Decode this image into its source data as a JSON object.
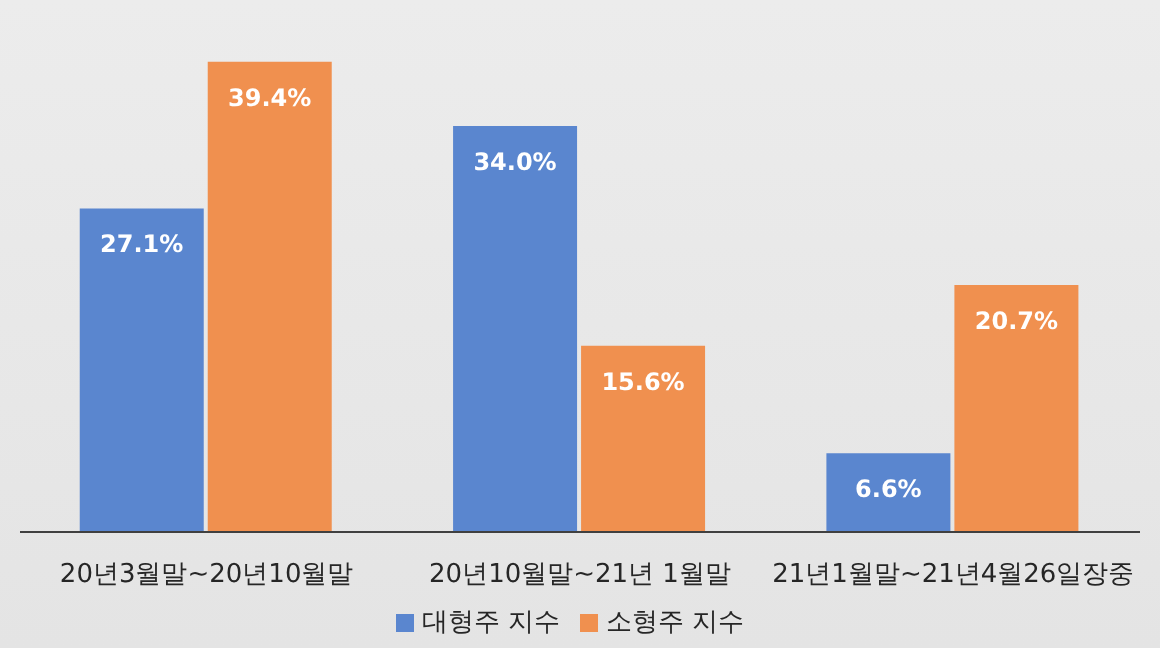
{
  "chart_data": {
    "type": "bar",
    "categories": [
      "20년3월말~20년10월말",
      "20년10월말~21년 1월말",
      "21년1월말~21년4월26일장중"
    ],
    "series": [
      {
        "name": "대형주 지수",
        "color": "#5a86cf",
        "values": [
          27.1,
          34.0,
          6.6
        ],
        "value_labels": [
          "27.1%",
          "34.0%",
          "6.6%"
        ]
      },
      {
        "name": "소형주 지수",
        "color": "#f0904f",
        "values": [
          39.4,
          15.6,
          20.7
        ],
        "value_labels": [
          "39.4%",
          "15.6%",
          "20.7%"
        ]
      }
    ],
    "legend": "bottom",
    "grid": false
  }
}
